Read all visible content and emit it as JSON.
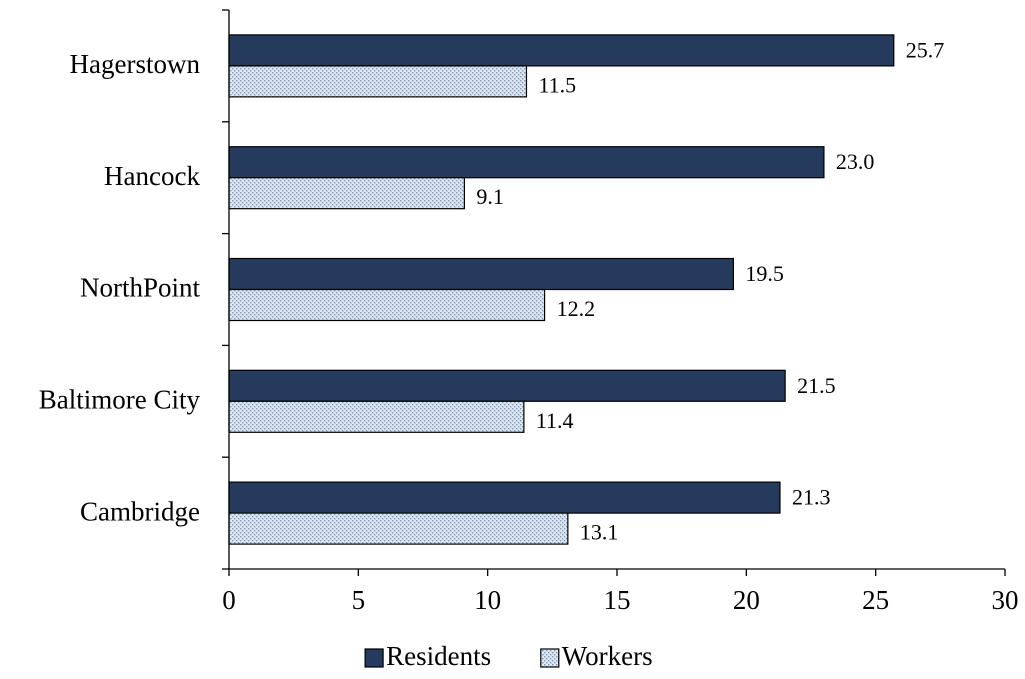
{
  "chart_data": {
    "type": "bar",
    "orientation": "horizontal",
    "title": "",
    "xlabel": "",
    "ylabel": "",
    "categories": [
      "Hagerstown",
      "Hancock",
      "NorthPoint",
      "Baltimore City",
      "Cambridge"
    ],
    "series": [
      {
        "name": "Residents",
        "values": [
          25.7,
          23.0,
          19.5,
          21.5,
          21.3
        ],
        "labels": [
          "25.7",
          "23.0",
          "19.5",
          "21.5",
          "21.3"
        ],
        "color": "#243b5e",
        "pattern": "solid"
      },
      {
        "name": "Workers",
        "values": [
          11.5,
          9.1,
          12.2,
          11.4,
          13.1
        ],
        "labels": [
          "11.5",
          "9.1",
          "12.2",
          "11.4",
          "13.1"
        ],
        "color": "#c5d5ea",
        "pattern": "dotted"
      }
    ],
    "xlim": [
      0,
      30
    ],
    "xticks": [
      0,
      5,
      10,
      15,
      20,
      25,
      30
    ],
    "grid": false,
    "legend": "bottom"
  }
}
